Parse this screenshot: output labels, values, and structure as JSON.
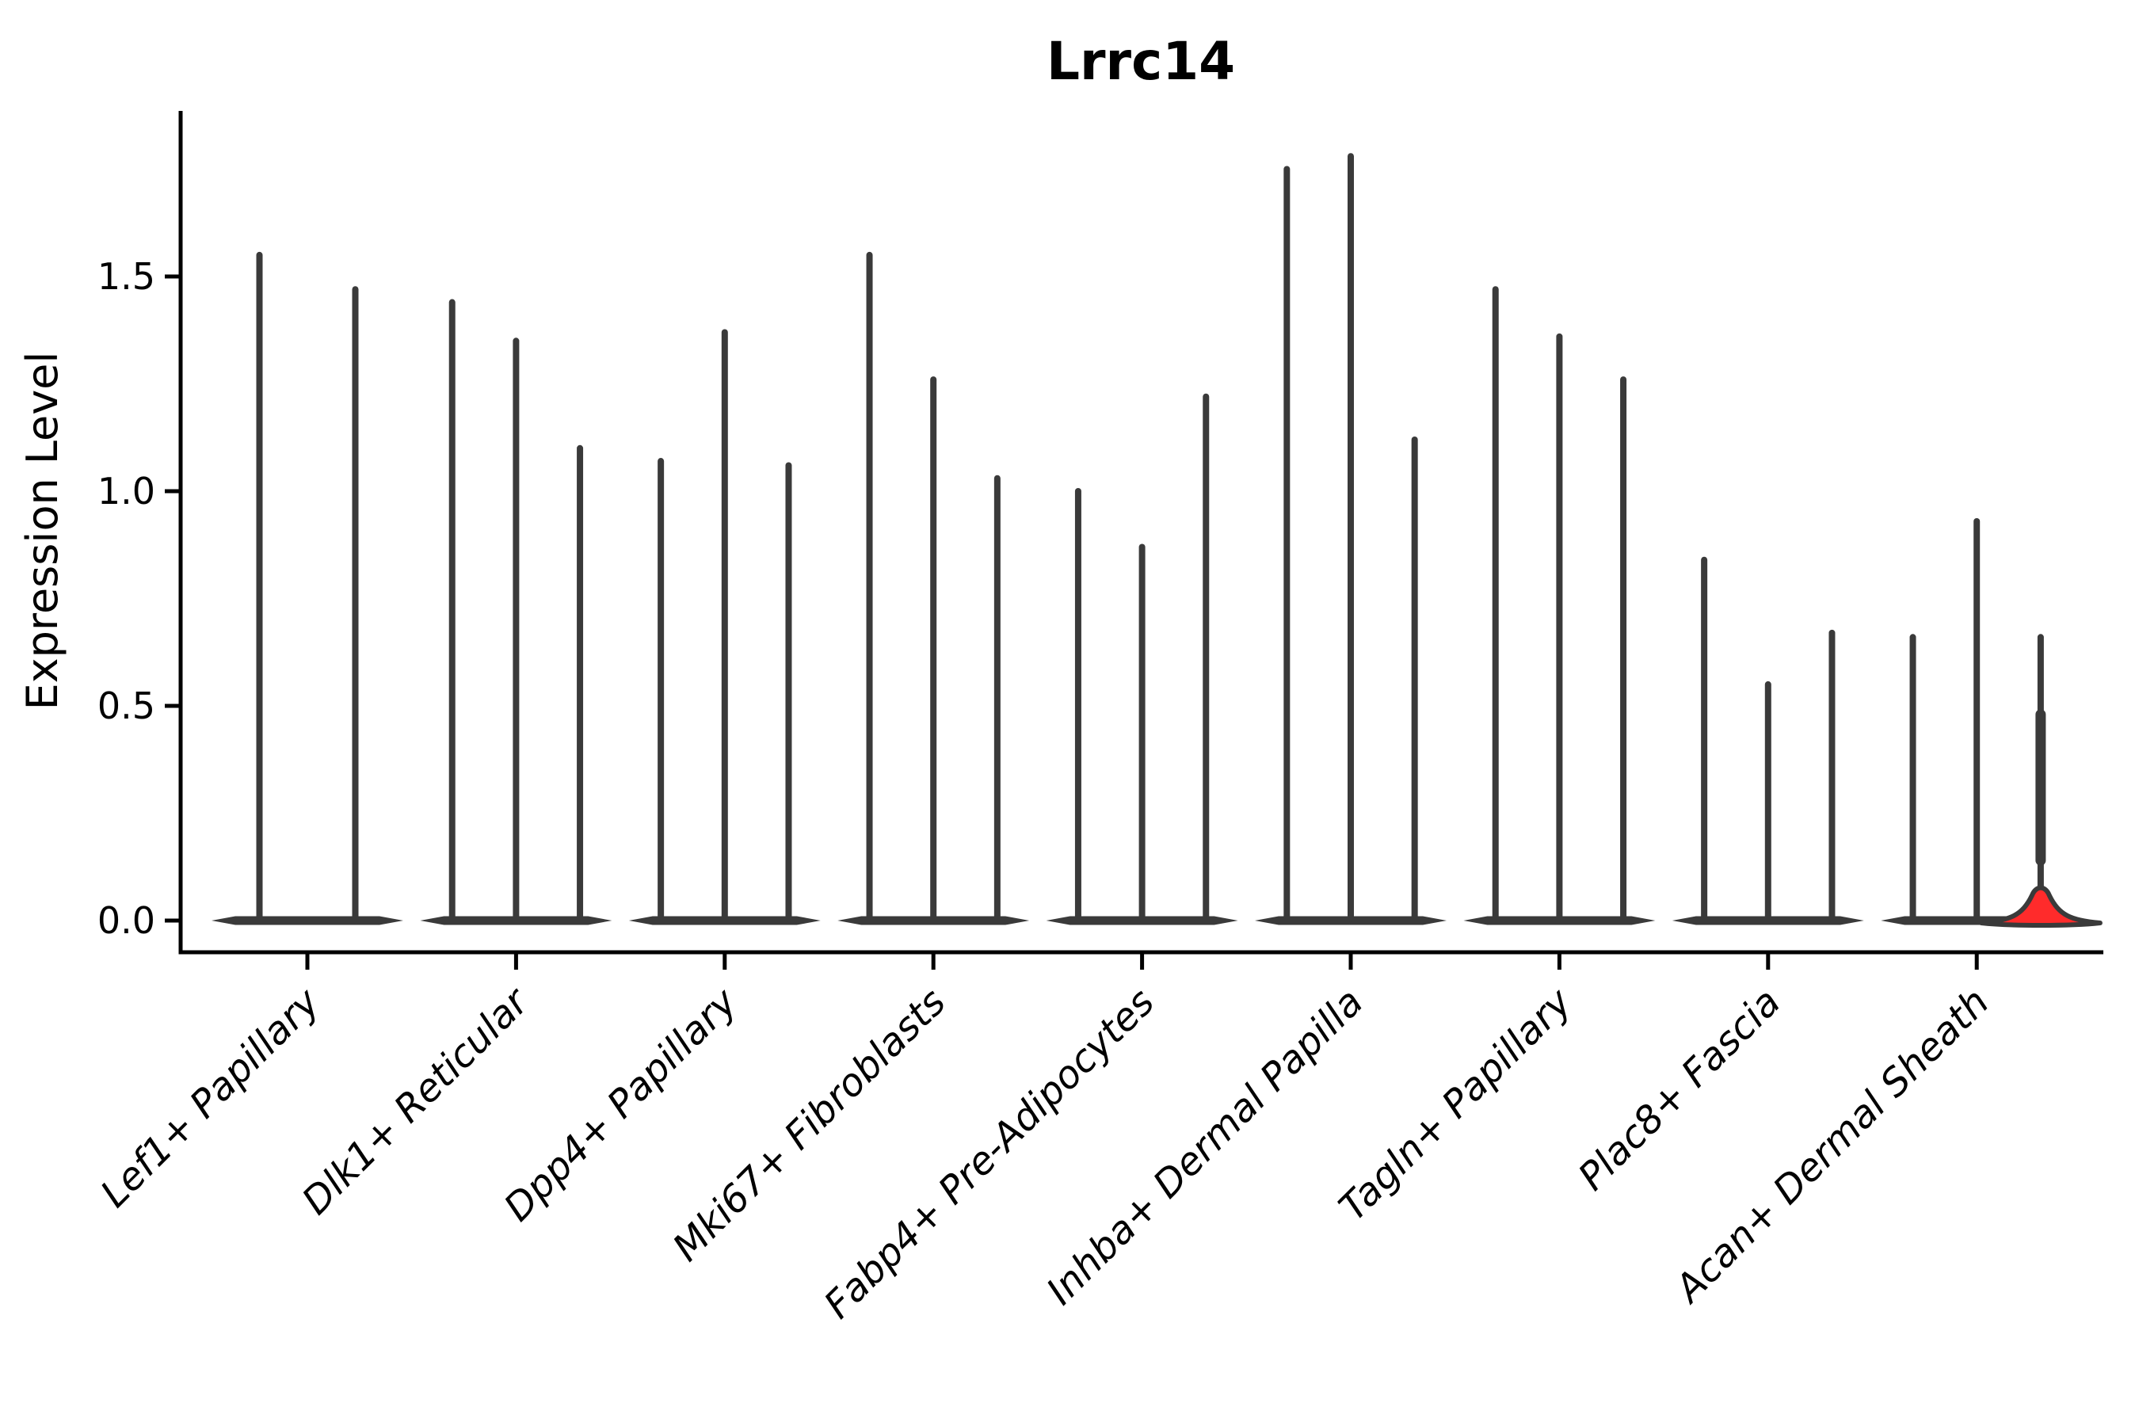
{
  "title": "Lrrc14",
  "y_axis": {
    "label": "Expression Level",
    "tick_labels": [
      "0.0",
      "0.5",
      "1.0",
      "1.5"
    ],
    "tick_values": [
      0.0,
      0.5,
      1.0,
      1.5
    ]
  },
  "colors": {
    "ink": "#3a3a3a",
    "axis": "#000000",
    "highlight_fill": "#ff2b2b",
    "background": "#ffffff"
  },
  "chart_data": {
    "type": "violin",
    "title": "Lrrc14",
    "xlabel": "",
    "ylabel": "Expression Level",
    "ylim": [
      0,
      1.88
    ],
    "yticks": [
      0.0,
      0.5,
      1.0,
      1.5
    ],
    "grid": false,
    "legend": "none",
    "description": "Single-cell expression violin plot; each category holds narrow sub-violins whose density mass sits at 0 with a thin spike up to the max expression value; the last violin of Acan+ Dermal Sheath is highlighted red with a visible density bulge near 0.",
    "categories": [
      "Lef1+ Papillary",
      "Dlk1+ Reticular",
      "Dpp4+ Papillary",
      "Mki67+ Fibroblasts",
      "Fabp4+ Pre-Adipocytes",
      "Inhba+ Dermal Papilla",
      "Tagln+ Papillary",
      "Plac8+ Fascia",
      "Acan+ Dermal Sheath"
    ],
    "groups": [
      {
        "category": "Lef1+ Papillary",
        "violins": [
          {
            "max": 1.55
          },
          {
            "max": 1.47
          }
        ]
      },
      {
        "category": "Dlk1+ Reticular",
        "violins": [
          {
            "max": 1.44
          },
          {
            "max": 1.35
          },
          {
            "max": 1.1
          }
        ]
      },
      {
        "category": "Dpp4+ Papillary",
        "violins": [
          {
            "max": 1.07
          },
          {
            "max": 1.37
          },
          {
            "max": 1.06
          }
        ]
      },
      {
        "category": "Mki67+ Fibroblasts",
        "violins": [
          {
            "max": 1.55
          },
          {
            "max": 1.26
          },
          {
            "max": 1.03
          }
        ]
      },
      {
        "category": "Fabp4+ Pre-Adipocytes",
        "violins": [
          {
            "max": 1.0
          },
          {
            "max": 0.87
          },
          {
            "max": 1.22
          }
        ]
      },
      {
        "category": "Inhba+ Dermal Papilla",
        "violins": [
          {
            "max": 1.75
          },
          {
            "max": 1.78
          },
          {
            "max": 1.12
          }
        ]
      },
      {
        "category": "Tagln+ Papillary",
        "violins": [
          {
            "max": 1.47
          },
          {
            "max": 1.36
          },
          {
            "max": 1.26
          }
        ]
      },
      {
        "category": "Plac8+ Fascia",
        "violins": [
          {
            "max": 0.84
          },
          {
            "max": 0.55
          },
          {
            "max": 0.67
          }
        ]
      },
      {
        "category": "Acan+ Dermal Sheath",
        "violins": [
          {
            "max": 0.66
          },
          {
            "max": 0.93
          },
          {
            "max": 0.66,
            "highlight": true,
            "fill": "#ff2b2b",
            "base_bulge_height": 0.075
          }
        ]
      }
    ]
  }
}
